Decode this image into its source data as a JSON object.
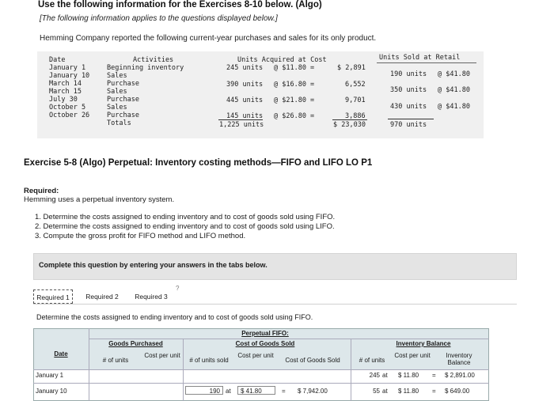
{
  "header": {
    "title": "Use the following information for the Exercises 8-10 below. (Algo)",
    "subtitle": "[The following information applies to the questions displayed below.]",
    "intro": "Hemming Company reported the following current-year purchases and sales for its only product."
  },
  "info_table": {
    "col_date": "Date",
    "col_activities": "Activities",
    "col_acquired": "Units Acquired at Cost",
    "col_sold": "Units Sold at Retail",
    "dates": [
      "January 1",
      "January 10",
      "March 14",
      "March 15",
      "July 30",
      "October 5",
      "October 26"
    ],
    "activities": [
      "Beginning inventory",
      "Sales",
      "Purchase",
      "Sales",
      "Purchase",
      "Sales",
      "Purchase",
      "Totals"
    ],
    "acquired": [
      {
        "units": "245 units",
        "cost": "@ $11.80 =",
        "total": "$ 2,891"
      },
      {
        "units": "390 units",
        "cost": "@ $16.80 =",
        "total": "6,552"
      },
      {
        "units": "445 units",
        "cost": "@ $21.80 =",
        "total": "9,701"
      },
      {
        "units": "145 units",
        "cost": "@ $26.80 =",
        "total": "3,886"
      }
    ],
    "acquired_total_units": "1,225 units",
    "acquired_total_cost": "$ 23,030",
    "sold": [
      {
        "units": "190 units",
        "price": "@ $41.80"
      },
      {
        "units": "350 units",
        "price": "@ $41.80"
      },
      {
        "units": "430 units",
        "price": "@ $41.80"
      }
    ],
    "sold_total": "970 units"
  },
  "exercise": {
    "title": "Exercise 5-8 (Algo) Perpetual: Inventory costing methods—FIFO and LIFO LO P1",
    "required_label": "Required:",
    "required_text": "Hemming uses a perpetual inventory system.",
    "steps": [
      "1. Determine the costs assigned to ending inventory and to cost of goods sold using FIFO.",
      "2. Determine the costs assigned to ending inventory and to cost of goods sold using LIFO.",
      "3. Compute the gross profit for FIFO method and LIFO method."
    ],
    "complete_text": "Complete this question by entering your answers in the tabs below."
  },
  "tabs": [
    "Required 1",
    "Required 2",
    "Required 3"
  ],
  "tab_hint": "?",
  "detail_text": "Determine the costs assigned to ending inventory and to cost of goods sold using FIFO.",
  "fifo_table": {
    "title_line1": "Perpetual FIFO:",
    "col_date": "Date",
    "goods_purchased": "Goods Purchased",
    "cogs": "Cost of Goods Sold",
    "inv_balance": "Inventory Balance",
    "units": "# of units",
    "cost_per_unit": "Cost per unit",
    "units_sold": "# of units sold",
    "cogs_col": "Cost of Goods Sold",
    "inv_col": "Inventory Balance",
    "rows": [
      {
        "date": "January 1",
        "bal_units": "245",
        "at": "at",
        "bal_cost": "$ 11.80",
        "eq": "=",
        "bal_total": "$ 2,891.00"
      },
      {
        "date": "January 10",
        "sold_units": "190",
        "at": "at",
        "sold_cost": "$ 41.80",
        "eq": "=",
        "cogs": "$ 7,942.00",
        "bal_units": "55",
        "bal_cost": "$ 11.80",
        "bal_total": "$ 649.00"
      }
    ]
  }
}
